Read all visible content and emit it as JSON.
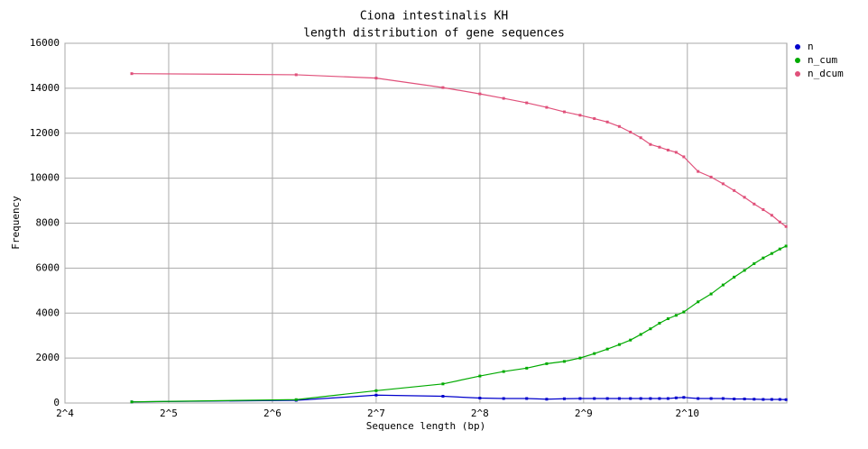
{
  "chart_data": {
    "type": "line",
    "title": "Ciona intestinalis KH",
    "subtitle": "length distribution of gene sequences",
    "x_label": "Sequence length (bp)",
    "y_label": "Frequency",
    "x_scale": "log2",
    "x": [
      25,
      75,
      128,
      200,
      256,
      300,
      350,
      400,
      450,
      500,
      550,
      600,
      650,
      700,
      750,
      800,
      850,
      900,
      950,
      1000,
      1100,
      1200,
      1300,
      1400,
      1500,
      1600,
      1700,
      1800,
      1900,
      1980
    ],
    "series": [
      {
        "name": "n",
        "color": "#0000cc",
        "values": [
          50,
          120,
          350,
          300,
          220,
          200,
          200,
          170,
          190,
          200,
          200,
          200,
          200,
          200,
          200,
          200,
          200,
          200,
          230,
          250,
          200,
          200,
          200,
          180,
          180,
          170,
          160,
          160,
          160,
          150
        ]
      },
      {
        "name": "n_cum",
        "color": "#00aa00",
        "values": [
          50,
          150,
          550,
          850,
          1200,
          1400,
          1550,
          1750,
          1850,
          2000,
          2200,
          2400,
          2600,
          2800,
          3050,
          3300,
          3550,
          3750,
          3900,
          4050,
          4500,
          4850,
          5250,
          5600,
          5900,
          6200,
          6450,
          6650,
          6850,
          6980
        ]
      },
      {
        "name": "n_dcum",
        "color": "#e0507a",
        "values": [
          14650,
          14600,
          14450,
          14030,
          13750,
          13550,
          13350,
          13150,
          12950,
          12800,
          12650,
          12500,
          12300,
          12050,
          11800,
          11500,
          11380,
          11250,
          11150,
          10950,
          10300,
          10050,
          9750,
          9450,
          9150,
          8850,
          8600,
          8350,
          8050,
          7850
        ]
      }
    ],
    "xlim": [
      16,
      1990
    ],
    "xticks": [
      {
        "value": 16,
        "label": "2^4"
      },
      {
        "value": 32,
        "label": "2^5"
      },
      {
        "value": 64,
        "label": "2^6"
      },
      {
        "value": 128,
        "label": "2^7"
      },
      {
        "value": 256,
        "label": "2^8"
      },
      {
        "value": 512,
        "label": "2^9"
      },
      {
        "value": 1024,
        "label": "2^10"
      }
    ],
    "ylim": [
      0,
      16000
    ],
    "yticks": [
      0,
      2000,
      4000,
      6000,
      8000,
      10000,
      12000,
      14000,
      16000
    ],
    "grid": true,
    "legend": "top-right"
  }
}
